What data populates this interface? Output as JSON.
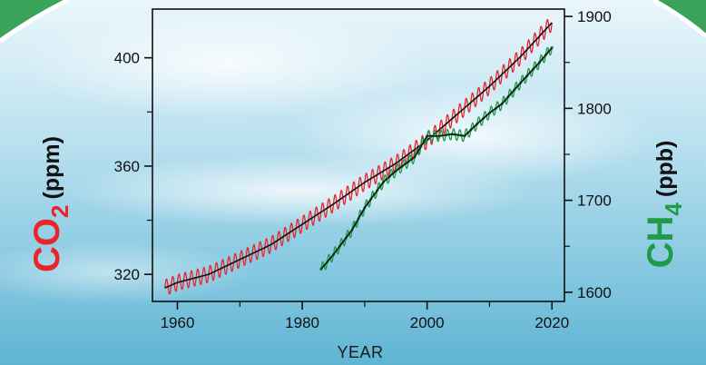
{
  "chart_data": {
    "type": "line",
    "xlabel": "YEAR",
    "xlim": [
      1956,
      2022
    ],
    "x_ticks": [
      "1960",
      "1980",
      "2000",
      "2020"
    ],
    "y_left": {
      "label_main": "CO",
      "label_sub": "2",
      "label_unit": "(ppm)",
      "lim": [
        310,
        418
      ],
      "ticks": [
        "320",
        "360",
        "400"
      ],
      "color": "#e8252b"
    },
    "y_right": {
      "label_main": "CH",
      "label_sub": "4",
      "label_unit": "(ppb)",
      "lim": [
        1590,
        1908
      ],
      "ticks": [
        "1600",
        "1700",
        "1800",
        "1900"
      ],
      "color": "#1f9a4a"
    },
    "series": [
      {
        "axis": "left",
        "style": "monthly",
        "color": "#e8252b",
        "x": [
          1958,
          1960,
          1965,
          1970,
          1975,
          1980,
          1985,
          1990,
          1995,
          2000,
          2005,
          2010,
          2015,
          2020
        ],
        "values": [
          315,
          317,
          320,
          325.5,
          331,
          338.5,
          346,
          354,
          361,
          369.5,
          379.5,
          389.5,
          400.5,
          413
        ],
        "seasonal_amplitude": 3
      },
      {
        "axis": "left",
        "style": "trend",
        "color": "#111111",
        "x": [
          1958,
          1960,
          1965,
          1970,
          1975,
          1980,
          1985,
          1990,
          1995,
          2000,
          2005,
          2010,
          2015,
          2020
        ],
        "values": [
          315,
          317,
          320,
          325.5,
          331,
          338.5,
          346,
          354,
          361,
          369.5,
          379.5,
          389.5,
          400.5,
          413
        ]
      },
      {
        "axis": "right",
        "style": "monthly",
        "color": "#1f9a4a",
        "x": [
          1983,
          1985,
          1988,
          1990,
          1993,
          1995,
          1998,
          2000,
          2002,
          2004,
          2006,
          2008,
          2010,
          2012,
          2015,
          2018,
          2020
        ],
        "values": [
          1625,
          1641,
          1668,
          1692,
          1720,
          1732,
          1747,
          1770,
          1770,
          1772,
          1770,
          1783,
          1795,
          1805,
          1828,
          1850,
          1866
        ],
        "seasonal_amplitude": 6
      },
      {
        "axis": "right",
        "style": "trend",
        "color": "#111111",
        "x": [
          1983,
          1985,
          1988,
          1990,
          1993,
          1995,
          1998,
          2000,
          2002,
          2004,
          2006,
          2008,
          2010,
          2012,
          2015,
          2018,
          2020
        ],
        "values": [
          1625,
          1641,
          1668,
          1692,
          1720,
          1732,
          1747,
          1770,
          1770,
          1772,
          1770,
          1783,
          1795,
          1805,
          1828,
          1850,
          1866
        ]
      }
    ]
  }
}
